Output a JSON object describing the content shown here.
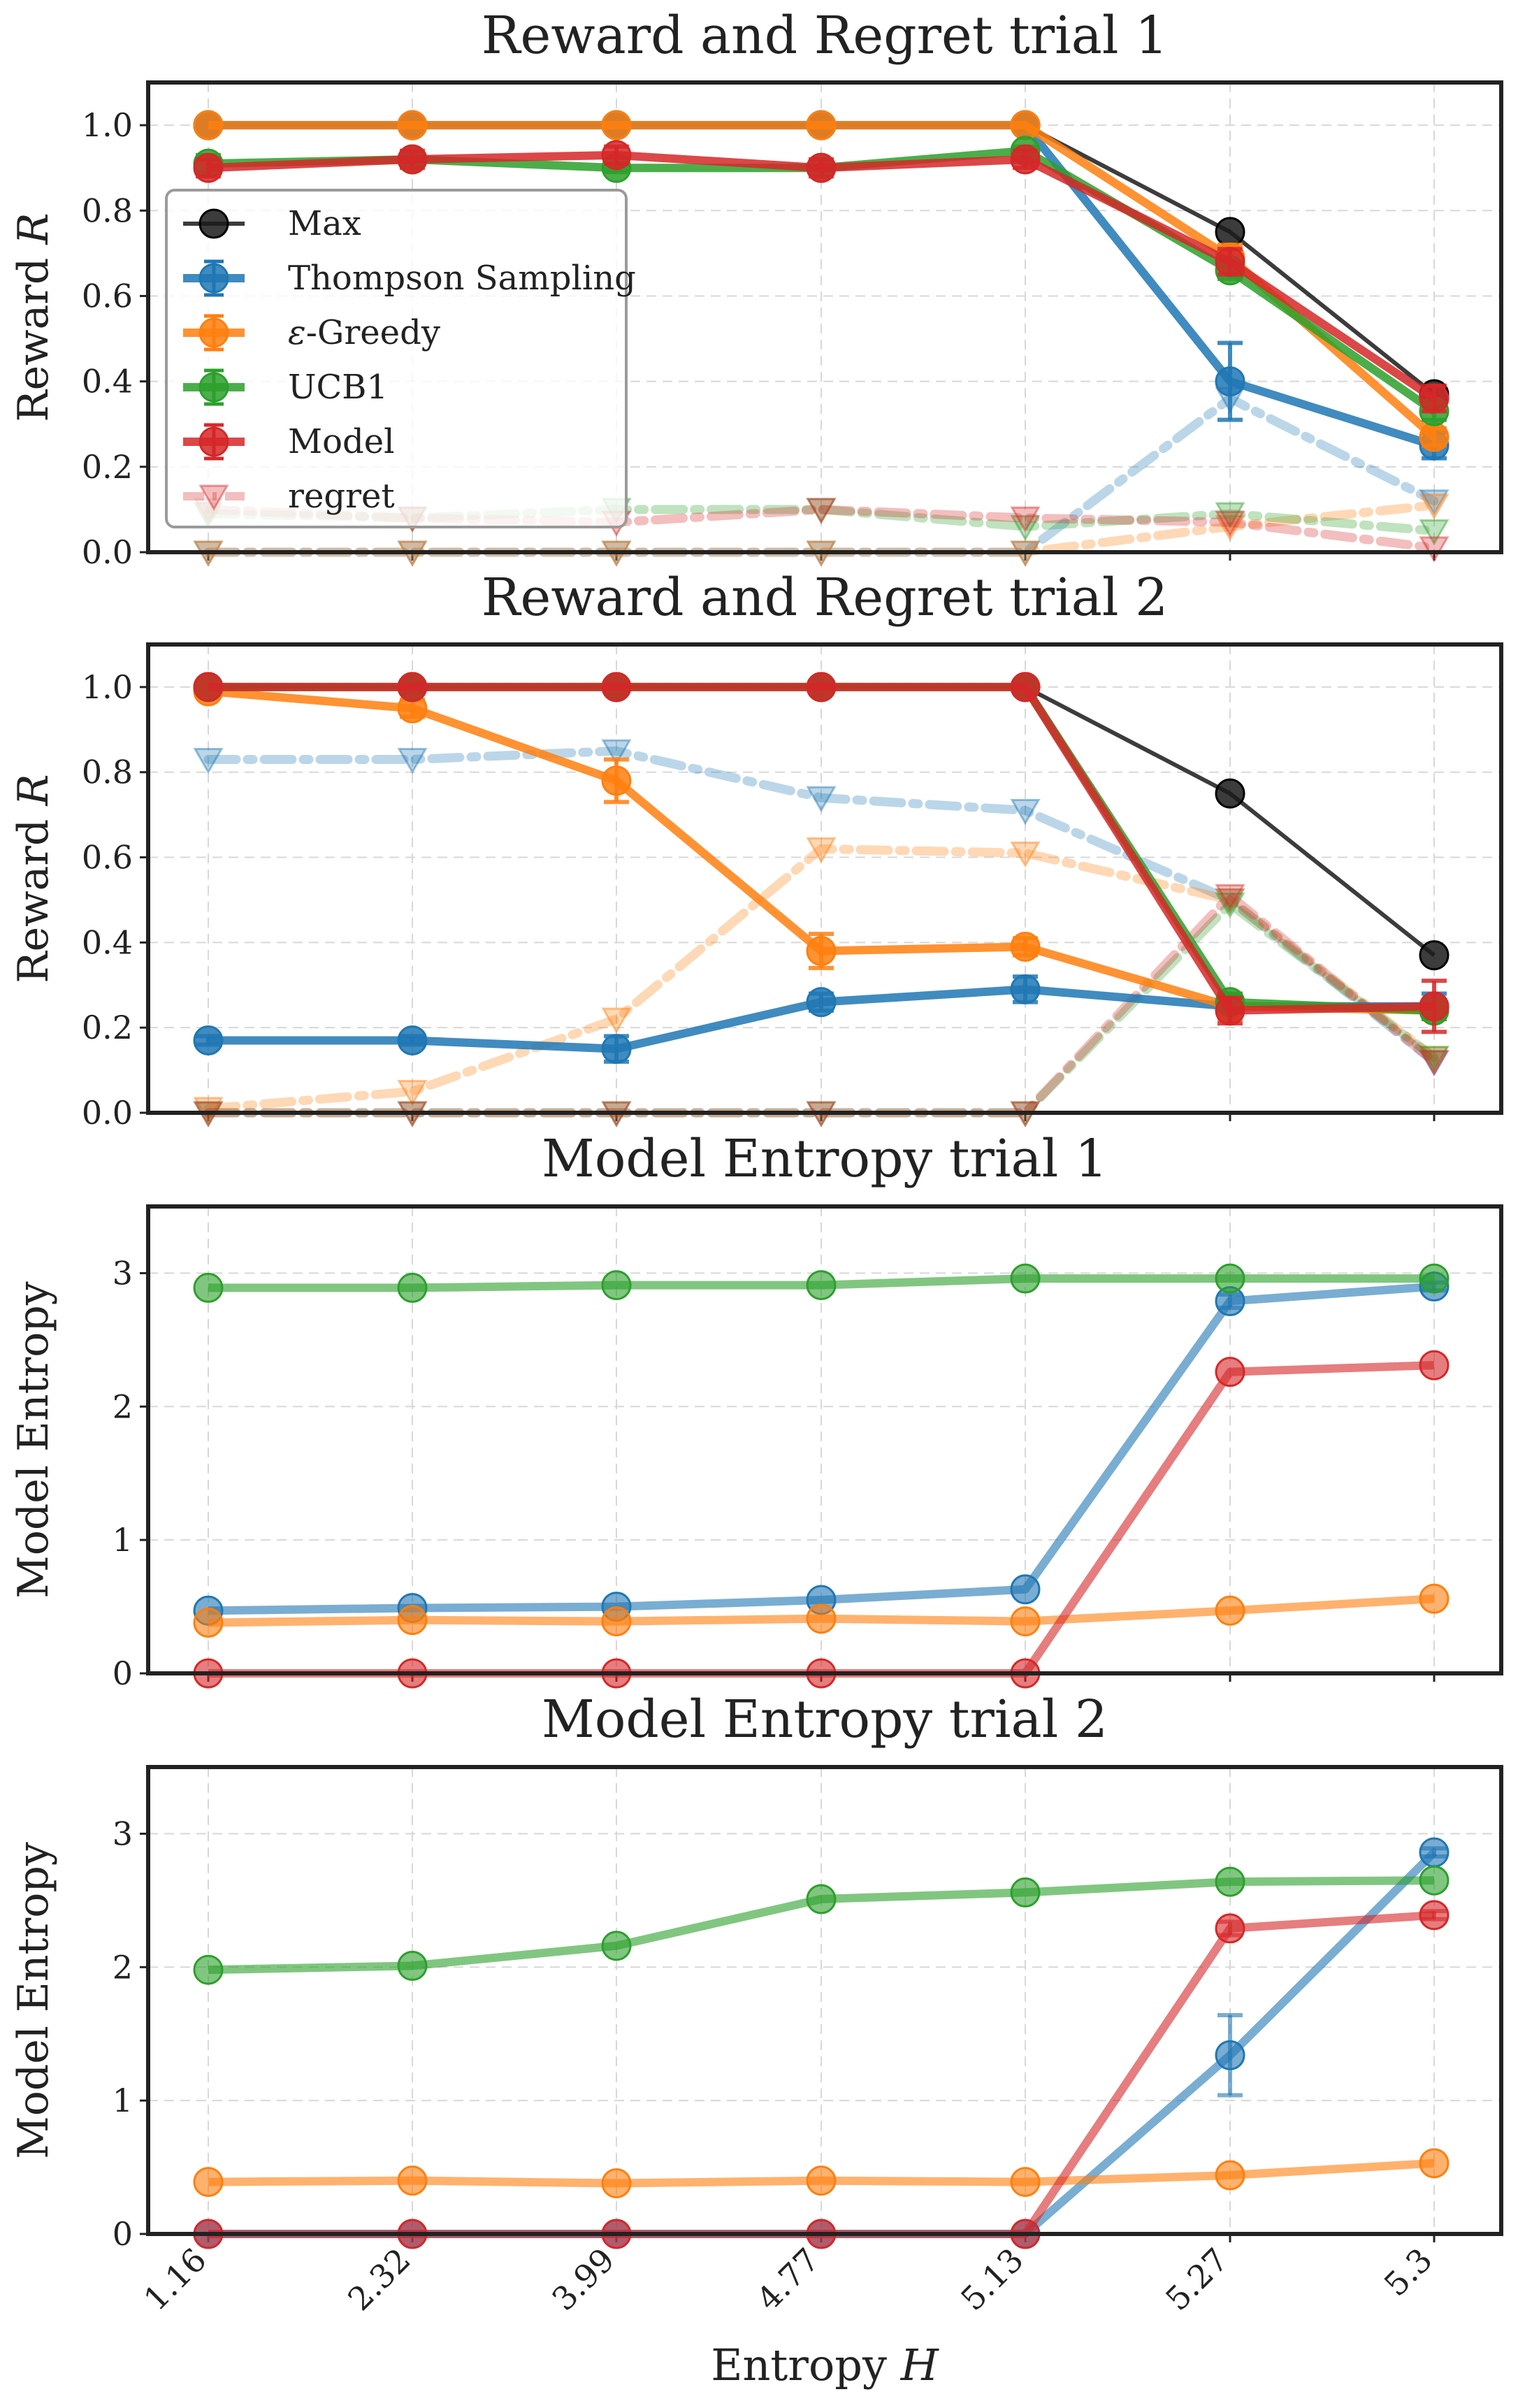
{
  "figure": {
    "xlabel": "Entropy H",
    "x_ticks": [
      "1.16",
      "2.32",
      "3.99",
      "4.77",
      "5.13",
      "5.27",
      "5.3"
    ]
  },
  "chart_data": [
    {
      "type": "line",
      "title": "Reward and Regret trial 1",
      "ylabel": "Reward R",
      "ylim": [
        0,
        1.1
      ],
      "yticks": [
        "0.0",
        "0.2",
        "0.4",
        "0.6",
        "0.8",
        "1.0"
      ],
      "grid": true,
      "legend_location": "center-left",
      "legend_entries": [
        "Max",
        "Thompson Sampling",
        "ε-Greedy",
        "UCB1",
        "Model",
        "regret"
      ],
      "categories": [
        "1.16",
        "2.32",
        "3.99",
        "4.77",
        "5.13",
        "5.27",
        "5.3"
      ],
      "series": [
        {
          "name": "Max",
          "color": "#1a1a1a",
          "values": [
            1.0,
            1.0,
            1.0,
            1.0,
            1.0,
            0.75,
            0.37
          ]
        },
        {
          "name": "Thompson Sampling",
          "color": "#1f77b4",
          "values": [
            1.0,
            1.0,
            1.0,
            1.0,
            1.0,
            0.4,
            0.25
          ],
          "errors": [
            0,
            0,
            0,
            0,
            0,
            0.09,
            0.03
          ]
        },
        {
          "name": "ε-Greedy",
          "color": "#ff7f0e",
          "values": [
            1.0,
            1.0,
            1.0,
            1.0,
            1.0,
            0.69,
            0.27
          ],
          "errors": [
            0,
            0,
            0,
            0,
            0,
            0.03,
            0.02
          ]
        },
        {
          "name": "UCB1",
          "color": "#2ca02c",
          "values": [
            0.91,
            0.92,
            0.9,
            0.9,
            0.94,
            0.66,
            0.33
          ],
          "errors": [
            0.02,
            0.01,
            0.01,
            0.01,
            0.01,
            0.02,
            0.02
          ]
        },
        {
          "name": "Model",
          "color": "#d62728",
          "values": [
            0.9,
            0.92,
            0.93,
            0.9,
            0.92,
            0.68,
            0.36
          ],
          "errors": [
            0.02,
            0.02,
            0.02,
            0.02,
            0.02,
            0.03,
            0.03
          ]
        },
        {
          "name": "regret",
          "color": "#1f77b4",
          "values": [
            0.0,
            0.0,
            0.0,
            0.0,
            0.0,
            0.36,
            0.12
          ]
        },
        {
          "name": "regret",
          "color": "#ff7f0e",
          "values": [
            0.0,
            0.0,
            0.0,
            0.0,
            0.0,
            0.06,
            0.11
          ]
        },
        {
          "name": "regret",
          "color": "#2ca02c",
          "values": [
            0.09,
            0.08,
            0.1,
            0.1,
            0.06,
            0.09,
            0.05
          ]
        },
        {
          "name": "regret",
          "color": "#d62728",
          "values": [
            0.1,
            0.08,
            0.07,
            0.1,
            0.08,
            0.07,
            0.01
          ]
        }
      ]
    },
    {
      "type": "line",
      "title": "Reward and Regret trial 2",
      "ylabel": "Reward R",
      "ylim": [
        0,
        1.1
      ],
      "yticks": [
        "0.0",
        "0.2",
        "0.4",
        "0.6",
        "0.8",
        "1.0"
      ],
      "grid": true,
      "categories": [
        "1.16",
        "2.32",
        "3.99",
        "4.77",
        "5.13",
        "5.27",
        "5.3"
      ],
      "series": [
        {
          "name": "Max",
          "color": "#1a1a1a",
          "values": [
            1.0,
            1.0,
            1.0,
            1.0,
            1.0,
            0.75,
            0.37
          ]
        },
        {
          "name": "Thompson Sampling",
          "color": "#1f77b4",
          "values": [
            0.17,
            0.17,
            0.15,
            0.26,
            0.29,
            0.25,
            0.25
          ],
          "errors": [
            0.01,
            0.01,
            0.03,
            0.02,
            0.03,
            0.01,
            0.03
          ]
        },
        {
          "name": "ε-Greedy",
          "color": "#ff7f0e",
          "values": [
            0.99,
            0.95,
            0.78,
            0.38,
            0.39,
            0.25,
            0.24
          ],
          "errors": [
            0.01,
            0.02,
            0.05,
            0.04,
            0.02,
            0.03,
            0.02
          ]
        },
        {
          "name": "UCB1",
          "color": "#2ca02c",
          "values": [
            1.0,
            1.0,
            1.0,
            1.0,
            1.0,
            0.26,
            0.24
          ],
          "errors": [
            0,
            0,
            0,
            0,
            0,
            0.02,
            0.02
          ]
        },
        {
          "name": "Model",
          "color": "#d62728",
          "values": [
            1.0,
            1.0,
            1.0,
            1.0,
            1.0,
            0.24,
            0.25
          ],
          "errors": [
            0,
            0,
            0,
            0,
            0,
            0.03,
            0.06
          ]
        },
        {
          "name": "regret",
          "color": "#1f77b4",
          "values": [
            0.83,
            0.83,
            0.85,
            0.74,
            0.71,
            0.5,
            0.12
          ]
        },
        {
          "name": "regret",
          "color": "#ff7f0e",
          "values": [
            0.01,
            0.05,
            0.22,
            0.62,
            0.61,
            0.5,
            0.13
          ]
        },
        {
          "name": "regret",
          "color": "#2ca02c",
          "values": [
            0.0,
            0.0,
            0.0,
            0.0,
            0.0,
            0.49,
            0.13
          ]
        },
        {
          "name": "regret",
          "color": "#d62728",
          "values": [
            0.0,
            0.0,
            0.0,
            0.0,
            0.0,
            0.51,
            0.12
          ]
        }
      ]
    },
    {
      "type": "line",
      "title": "Model Entropy trial 1",
      "ylabel": "Model Entropy",
      "ylim": [
        0,
        3.5
      ],
      "yticks": [
        "0",
        "1",
        "2",
        "3"
      ],
      "grid": true,
      "categories": [
        "1.16",
        "2.32",
        "3.99",
        "4.77",
        "5.13",
        "5.27",
        "5.3"
      ],
      "series": [
        {
          "name": "Thompson Sampling",
          "color": "#1f77b4",
          "values": [
            0.47,
            0.49,
            0.5,
            0.55,
            0.63,
            2.79,
            2.9
          ],
          "errors": [
            0,
            0,
            0,
            0,
            0,
            0.05,
            0.03
          ]
        },
        {
          "name": "ε-Greedy",
          "color": "#ff7f0e",
          "values": [
            0.38,
            0.4,
            0.39,
            0.41,
            0.39,
            0.47,
            0.56
          ]
        },
        {
          "name": "UCB1",
          "color": "#2ca02c",
          "values": [
            2.89,
            2.89,
            2.91,
            2.91,
            2.96,
            2.96,
            2.96
          ]
        },
        {
          "name": "Model",
          "color": "#d62728",
          "values": [
            0.0,
            0.0,
            0.0,
            0.0,
            0.0,
            2.26,
            2.31
          ]
        }
      ]
    },
    {
      "type": "line",
      "title": "Model Entropy trial 2",
      "ylabel": "Model Entropy",
      "ylim": [
        0,
        3.5
      ],
      "yticks": [
        "0",
        "1",
        "2",
        "3"
      ],
      "grid": true,
      "categories": [
        "1.16",
        "2.32",
        "3.99",
        "4.77",
        "5.13",
        "5.27",
        "5.3"
      ],
      "series": [
        {
          "name": "Thompson Sampling",
          "color": "#1f77b4",
          "values": [
            0.0,
            0.0,
            0.0,
            0.0,
            0.0,
            1.34,
            2.86
          ],
          "errors": [
            0,
            0,
            0,
            0,
            0,
            0.3,
            0.03
          ]
        },
        {
          "name": "ε-Greedy",
          "color": "#ff7f0e",
          "values": [
            0.39,
            0.4,
            0.38,
            0.4,
            0.39,
            0.44,
            0.53
          ]
        },
        {
          "name": "UCB1",
          "color": "#2ca02c",
          "values": [
            1.98,
            2.01,
            2.16,
            2.51,
            2.56,
            2.64,
            2.65
          ]
        },
        {
          "name": "Model",
          "color": "#d62728",
          "values": [
            0.0,
            0.0,
            0.0,
            0.0,
            0.0,
            2.29,
            2.39
          ],
          "errors": [
            0,
            0,
            0,
            0,
            0,
            0.05,
            0.03
          ]
        }
      ]
    }
  ]
}
